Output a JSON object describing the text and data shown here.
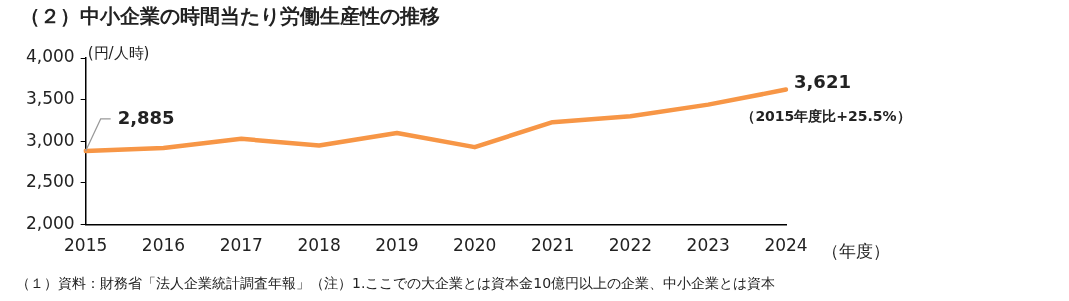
{
  "chart_data": {
    "type": "line",
    "title": "（２）中小企業の時間当たり労働生産性の推移",
    "ylabel": "(円/人時)",
    "xlabel": "（年度）",
    "categories": [
      "2015",
      "2016",
      "2017",
      "2018",
      "2019",
      "2020",
      "2021",
      "2022",
      "2023",
      "2024"
    ],
    "series": [
      {
        "color": "#f79646",
        "values": [
          2885,
          2920,
          3030,
          2950,
          3100,
          2930,
          3230,
          3300,
          3440,
          3621
        ],
        "value_labels": [
          "2,885",
          null,
          null,
          null,
          null,
          null,
          null,
          null,
          null,
          "3,621"
        ]
      }
    ],
    "ylim": [
      2000,
      4000
    ],
    "yticks": [
      {
        "value": 2000,
        "label": "2,000"
      },
      {
        "value": 2500,
        "label": "2,500"
      },
      {
        "value": 3000,
        "label": "3,000"
      },
      {
        "value": 3500,
        "label": "3,500"
      },
      {
        "value": 4000,
        "label": "4,000"
      }
    ],
    "grid": false,
    "legend": false,
    "marker": "none",
    "line_style": "solid",
    "annotations": [
      {
        "text": "（2015年度比+25.5%）",
        "x": "2024",
        "y": 3621
      },
      "（１）資料：財務省「法人企業統計調査年報」（注）1.ここでの大企業とは資本金10億円以上の企業、中小企業とは資本"
    ]
  }
}
